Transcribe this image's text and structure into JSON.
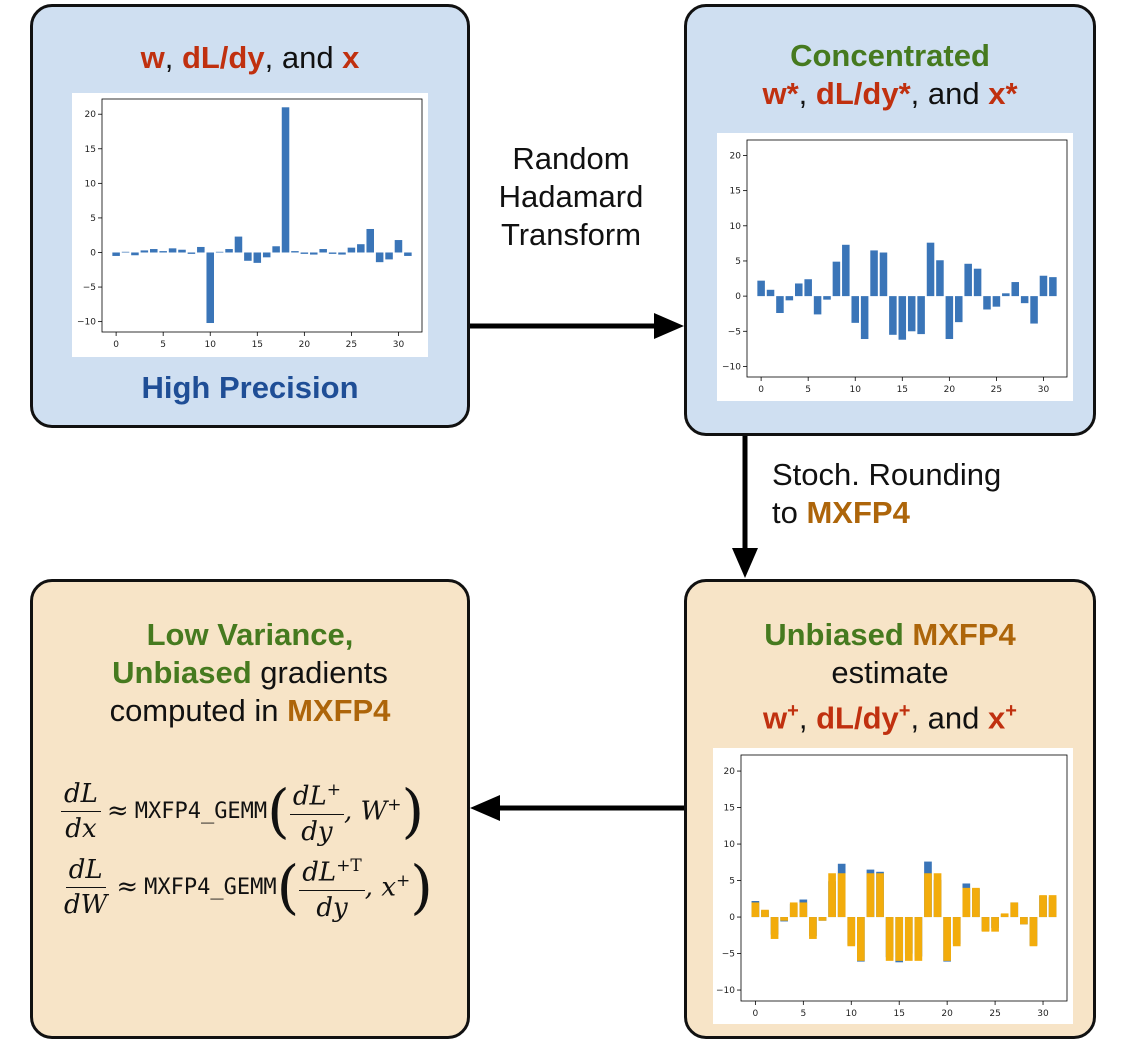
{
  "boxes": {
    "high_precision": {
      "title_parts": [
        "w",
        ", ",
        "dL/dy",
        ", and ",
        "x"
      ],
      "caption": "High Precision"
    },
    "concentrated": {
      "title_line1": "Concentrated",
      "title_parts": [
        "w*",
        ", ",
        "dL/dy*",
        ", and ",
        "x*"
      ]
    },
    "unbiased_estimate": {
      "title_a": "Unbiased",
      "title_b": "MXFP4",
      "line2": "estimate",
      "title_parts": [
        "w",
        "+",
        ", ",
        "dL/dy",
        "+",
        ", and ",
        "x",
        "+"
      ]
    },
    "low_variance": {
      "line1": "Low Variance,",
      "line2_a": "Unbiased",
      "line2_b": " gradients",
      "line3_a": "computed in ",
      "line3_b": "MXFP4",
      "formula1": {
        "lhs_num": "dL",
        "lhs_den": "dx",
        "approx": "≈",
        "fn": "MXFP4_GEMM",
        "arg_num": "dL",
        "arg_sup": "+",
        "arg_den": "dy",
        "arg2": "W",
        "arg2_sup": "+"
      },
      "formula2": {
        "lhs_num": "dL",
        "lhs_den": "dW",
        "approx": "≈",
        "fn": "MXFP4_GEMM",
        "arg_num": "dL",
        "arg_sup": "+T",
        "arg_den": "dy",
        "arg2": "x",
        "arg2_sup": "+"
      }
    }
  },
  "edges": {
    "rht": [
      "Random",
      "Hadamard",
      "Transform"
    ],
    "stoch_a": "Stoch. Rounding",
    "stoch_b_prefix": "to ",
    "stoch_b": "MXFP4"
  },
  "colors": {
    "bar_blue": "#3a75b8",
    "bar_orange": "#f2ac0c"
  },
  "chart_data": [
    {
      "type": "bar",
      "x": [
        0,
        1,
        2,
        3,
        4,
        5,
        6,
        7,
        8,
        9,
        10,
        11,
        12,
        13,
        14,
        15,
        16,
        17,
        18,
        19,
        20,
        21,
        22,
        23,
        24,
        25,
        26,
        27,
        28,
        29,
        30,
        31
      ],
      "values": [
        -0.5,
        0.1,
        -0.4,
        0.3,
        0.5,
        0.2,
        0.6,
        0.4,
        -0.2,
        0.8,
        -10.2,
        0.1,
        0.5,
        2.3,
        -1.2,
        -1.5,
        -0.7,
        0.9,
        21.0,
        0.2,
        -0.2,
        -0.3,
        0.5,
        -0.2,
        -0.3,
        0.7,
        1.2,
        3.4,
        -1.4,
        -1.0,
        1.8,
        -0.5
      ],
      "xticks": [
        0,
        5,
        10,
        15,
        20,
        25,
        30
      ],
      "yticks": [
        -10,
        -5,
        0,
        5,
        10,
        15,
        20
      ],
      "xlim": [
        -1.5,
        32.5
      ],
      "ylim": [
        -11.5,
        22.2
      ]
    },
    {
      "type": "bar",
      "x": [
        0,
        1,
        2,
        3,
        4,
        5,
        6,
        7,
        8,
        9,
        10,
        11,
        12,
        13,
        14,
        15,
        16,
        17,
        18,
        19,
        20,
        21,
        22,
        23,
        24,
        25,
        26,
        27,
        28,
        29,
        30,
        31
      ],
      "values": [
        2.2,
        0.9,
        -2.4,
        -0.6,
        1.8,
        2.4,
        -2.6,
        -0.5,
        4.9,
        7.3,
        -3.8,
        -6.1,
        6.5,
        6.2,
        -5.5,
        -6.2,
        -5.0,
        -5.4,
        7.6,
        5.1,
        -6.1,
        -3.7,
        4.6,
        3.9,
        -1.9,
        -1.5,
        0.4,
        2.0,
        -1.0,
        -3.9,
        2.9,
        2.7
      ],
      "xticks": [
        0,
        5,
        10,
        15,
        20,
        25,
        30
      ],
      "yticks": [
        -10,
        -5,
        0,
        5,
        10,
        15,
        20
      ],
      "xlim": [
        -1.5,
        32.5
      ],
      "ylim": [
        -11.5,
        22.2
      ]
    },
    {
      "type": "bar",
      "stacked_overlay": true,
      "x": [
        0,
        1,
        2,
        3,
        4,
        5,
        6,
        7,
        8,
        9,
        10,
        11,
        12,
        13,
        14,
        15,
        16,
        17,
        18,
        19,
        20,
        21,
        22,
        23,
        24,
        25,
        26,
        27,
        28,
        29,
        30,
        31
      ],
      "series": [
        {
          "name": "",
          "color": "#3a75b8",
          "values": [
            2.2,
            0.9,
            -2.4,
            -0.6,
            1.8,
            2.4,
            -2.6,
            -0.5,
            4.9,
            7.3,
            -3.8,
            -6.1,
            6.5,
            6.2,
            -5.5,
            -6.2,
            -5.0,
            -5.4,
            7.6,
            5.1,
            -6.1,
            -3.7,
            4.6,
            3.9,
            -1.9,
            -1.5,
            0.4,
            2.0,
            -1.0,
            -3.9,
            2.9,
            2.7
          ]
        },
        {
          "name": "",
          "color": "#f2ac0c",
          "values": [
            2,
            1,
            -3,
            -0.5,
            2,
            2,
            -3,
            -0.5,
            6,
            6,
            -4,
            -6,
            6,
            6,
            -6,
            -6,
            -6,
            -6,
            6,
            6,
            -6,
            -4,
            4,
            4,
            -2,
            -2,
            0.5,
            2,
            -1,
            -4,
            3,
            3
          ]
        }
      ],
      "xticks": [
        0,
        5,
        10,
        15,
        20,
        25,
        30
      ],
      "yticks": [
        -10,
        -5,
        0,
        5,
        10,
        15,
        20
      ],
      "xlim": [
        -1.5,
        32.5
      ],
      "ylim": [
        -11.5,
        22.2
      ]
    }
  ]
}
